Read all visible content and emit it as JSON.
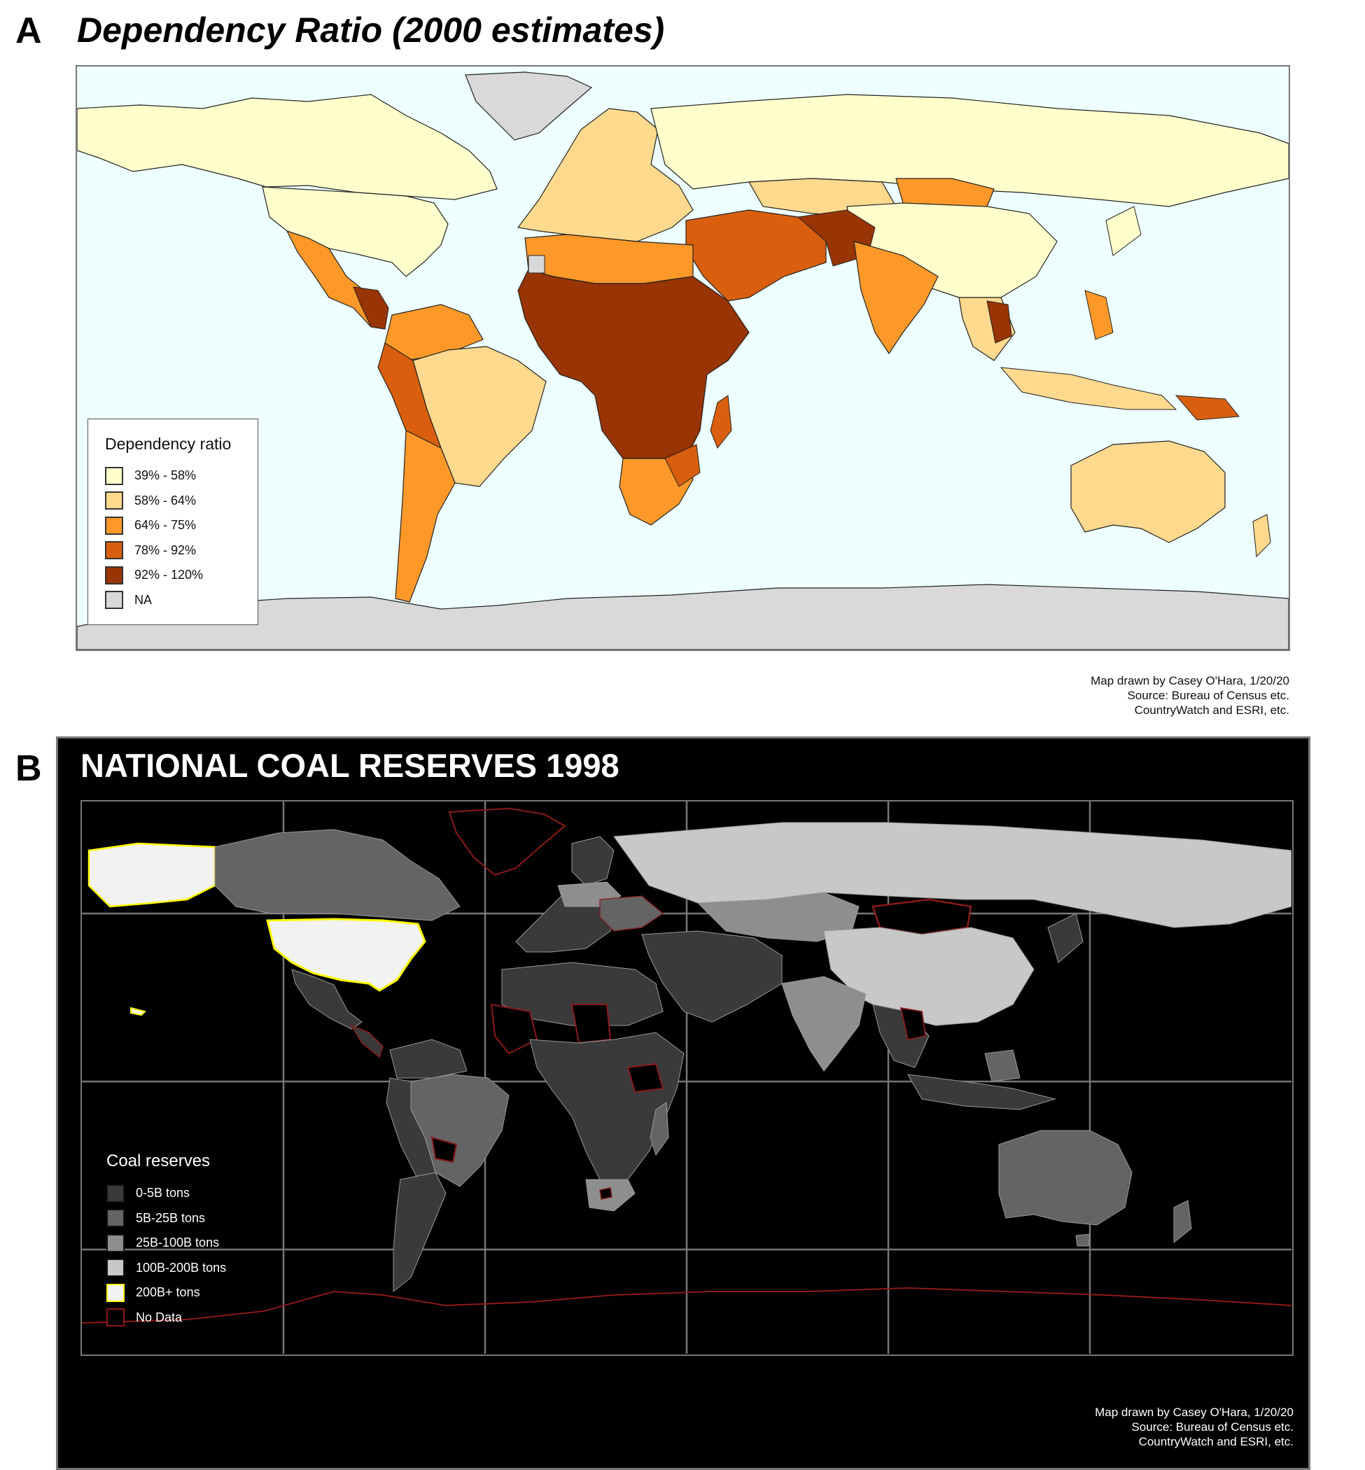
{
  "panel_a": {
    "letter": "A",
    "title": "Dependency Ratio (2000 estimates)",
    "legend": {
      "title": "Dependency ratio",
      "items": [
        {
          "label": "39% - 58%",
          "color": "#ffffcc"
        },
        {
          "label": "58% - 64%",
          "color": "#fed98e"
        },
        {
          "label": "64% - 75%",
          "color": "#fe9929"
        },
        {
          "label": "78% - 92%",
          "color": "#d95f0e"
        },
        {
          "label": "92% - 120%",
          "color": "#993404"
        },
        {
          "label": "NA",
          "color": "#d9d9d9"
        }
      ]
    },
    "credits": [
      "Map drawn by Casey O'Hara, 1/20/20",
      "Source: Bureau of Census etc.",
      "CountryWatch and ESRI, etc."
    ],
    "colors": {
      "ocean": "#eeffff",
      "antarctica": "#d9d9d9",
      "greenland": "#d9d9d9"
    }
  },
  "panel_b": {
    "letter": "B",
    "title": "NATIONAL COAL RESERVES 1998",
    "legend": {
      "title": "Coal reserves",
      "items": [
        {
          "label": "0-5B tons",
          "color": "#3a3a3a"
        },
        {
          "label": "5B-25B tons",
          "color": "#646464"
        },
        {
          "label": "25B-100B tons",
          "color": "#8e8e8e"
        },
        {
          "label": "100B-200B tons",
          "color": "#c8c8c8"
        },
        {
          "label": "200B+ tons",
          "color": "#f2f2f2",
          "border": "#ffff00"
        },
        {
          "label": "No Data",
          "color": "#000000",
          "border": "#8b1a1a"
        }
      ]
    },
    "credits": [
      "Map drawn by Casey O'Hara, 1/20/20",
      "Source: Bureau of Census etc.",
      "CountryWatch and ESRI, etc."
    ],
    "colors": {
      "background": "#000000",
      "grid": "#777777",
      "no_data_outline": "#8b1a1a",
      "top_outline": "#ffff00"
    }
  }
}
